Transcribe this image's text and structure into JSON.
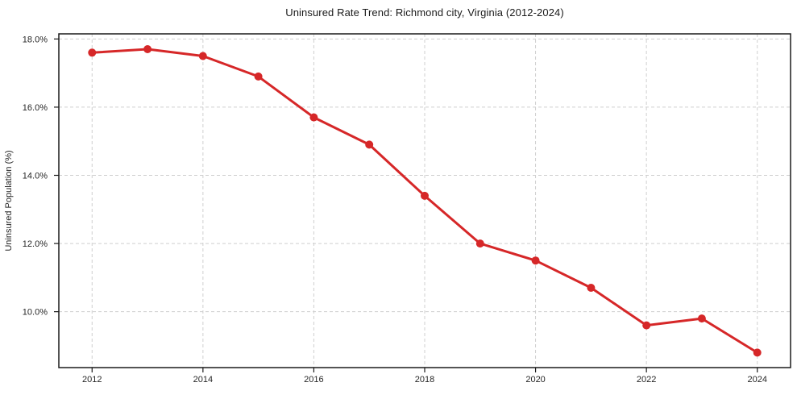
{
  "chart": {
    "title": "Uninsured Rate Trend: Richmond city, Virginia (2012-2024)",
    "ylabel": "Uninsured Population (%)"
  },
  "chart_data": {
    "type": "line",
    "title": "Uninsured Rate Trend: Richmond city, Virginia (2012-2024)",
    "xlabel": "",
    "ylabel": "Uninsured Population (%)",
    "x": [
      2012,
      2013,
      2014,
      2015,
      2016,
      2017,
      2018,
      2019,
      2020,
      2021,
      2022,
      2023,
      2024
    ],
    "values": [
      17.6,
      17.7,
      17.5,
      16.9,
      15.7,
      14.9,
      13.4,
      12.0,
      11.5,
      10.7,
      9.6,
      9.8,
      8.8
    ],
    "xtick_values": [
      2012,
      2014,
      2016,
      2018,
      2020,
      2022,
      2024
    ],
    "xtick_labels": [
      "2012",
      "2014",
      "2016",
      "2018",
      "2020",
      "2022",
      "2024"
    ],
    "ytick_values": [
      10,
      12,
      14,
      16,
      18
    ],
    "ytick_labels": [
      "10.0%",
      "12.0%",
      "14.0%",
      "16.0%",
      "18.0%"
    ],
    "xlim": [
      2011.4,
      2024.6
    ],
    "ylim": [
      8.36,
      18.15
    ],
    "grid": true,
    "legend": false,
    "style": {
      "line_color": "#d62728",
      "marker_color": "#d62728",
      "grid_color": "#cfcfcf",
      "spine_color": "#1a1a1a",
      "tick_text_color": "#262626",
      "title_color": "#1a1a1a",
      "background": "#ffffff",
      "line_width": 3,
      "marker_radius": 5
    }
  }
}
